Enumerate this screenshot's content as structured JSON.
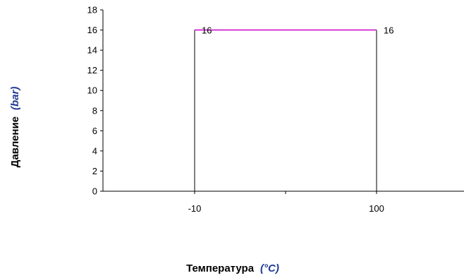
{
  "chart_data": {
    "type": "line",
    "title": "",
    "xlabel": "Температура",
    "xlabel_unit": "(°C)",
    "ylabel": "Давление",
    "ylabel_unit": "(bar)",
    "ylim": [
      0,
      18
    ],
    "y_ticks": [
      0,
      2,
      4,
      6,
      8,
      10,
      12,
      14,
      16,
      18
    ],
    "x_categories": [
      "-10",
      "100"
    ],
    "grid": false,
    "legend": "none",
    "series": [
      {
        "points": [
          {
            "x": "-10",
            "y": 16,
            "label": "16"
          },
          {
            "x": "100",
            "y": 16,
            "label": "16"
          }
        ],
        "color": "#cc00cc"
      }
    ],
    "drop_lines": {
      "color": "#000000"
    },
    "unit_color": "#1f3a93"
  }
}
